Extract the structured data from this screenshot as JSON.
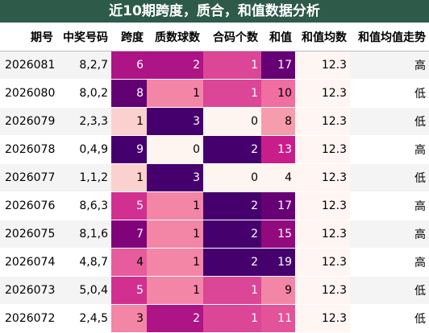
{
  "title": "近10期跨度，质合，和值数据分析",
  "headers": [
    "期号",
    "中奖号码",
    "跨度",
    "质数球数",
    "合码个数",
    "和值",
    "和值均数",
    "和值均值走势"
  ],
  "rows": [
    {
      "period": "2026081",
      "numbers": "8,2,7",
      "span": "6",
      "prime": "2",
      "composite": "1",
      "sum": "17",
      "avg": "12.3",
      "trend": "高"
    },
    {
      "period": "2026080",
      "numbers": "8,0,2",
      "span": "8",
      "prime": "1",
      "composite": "1",
      "sum": "10",
      "avg": "12.3",
      "trend": "低"
    },
    {
      "period": "2026079",
      "numbers": "2,3,3",
      "span": "1",
      "prime": "3",
      "composite": "0",
      "sum": "8",
      "avg": "12.3",
      "trend": "低"
    },
    {
      "period": "2026078",
      "numbers": "0,4,9",
      "span": "9",
      "prime": "0",
      "composite": "2",
      "sum": "13",
      "avg": "12.3",
      "trend": "高"
    },
    {
      "period": "2026077",
      "numbers": "1,1,2",
      "span": "1",
      "prime": "3",
      "composite": "0",
      "sum": "4",
      "avg": "12.3",
      "trend": "低"
    },
    {
      "period": "2026076",
      "numbers": "8,6,3",
      "span": "5",
      "prime": "1",
      "composite": "2",
      "sum": "17",
      "avg": "12.3",
      "trend": "高"
    },
    {
      "period": "2026075",
      "numbers": "8,1,6",
      "span": "7",
      "prime": "1",
      "composite": "2",
      "sum": "15",
      "avg": "12.3",
      "trend": "高"
    },
    {
      "period": "2026074",
      "numbers": "4,8,7",
      "span": "4",
      "prime": "1",
      "composite": "2",
      "sum": "19",
      "avg": "12.3",
      "trend": "高"
    },
    {
      "period": "2026073",
      "numbers": "5,0,4",
      "span": "5",
      "prime": "1",
      "composite": "1",
      "sum": "9",
      "avg": "12.3",
      "trend": "低"
    },
    {
      "period": "2026072",
      "numbers": "2,4,5",
      "span": "3",
      "prime": "2",
      "composite": "1",
      "sum": "11",
      "avg": "12.3",
      "trend": "低"
    }
  ]
}
